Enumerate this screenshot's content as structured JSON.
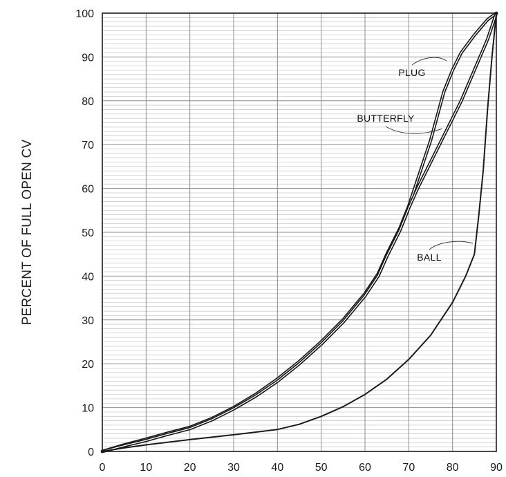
{
  "chart_data": {
    "type": "line",
    "ylabel": "PERCENT OF FULL OPEN CV",
    "xlabel": "",
    "xlim": [
      0,
      90
    ],
    "ylim": [
      0,
      100
    ],
    "xticks": [
      0,
      10,
      20,
      30,
      40,
      50,
      60,
      70,
      80,
      90
    ],
    "yticks": [
      0,
      10,
      20,
      30,
      40,
      50,
      60,
      70,
      80,
      90,
      100
    ],
    "grid": true,
    "series": [
      {
        "name": "PLUG",
        "style": "double",
        "x": [
          0,
          5,
          10,
          15,
          20,
          25,
          30,
          35,
          40,
          45,
          50,
          55,
          60,
          63,
          65,
          68,
          70,
          72,
          75,
          78,
          80,
          82,
          85,
          88,
          90
        ],
        "y": [
          0,
          1.5,
          2.8,
          4.2,
          5.5,
          7.5,
          10,
          13,
          16.5,
          20.5,
          25,
          30,
          36,
          40.5,
          45,
          51,
          56,
          62,
          71,
          82,
          87,
          91,
          95,
          98.5,
          100
        ]
      },
      {
        "name": "BUTTERFLY",
        "style": "double",
        "x": [
          0,
          5,
          10,
          15,
          20,
          25,
          30,
          35,
          40,
          45,
          50,
          55,
          60,
          63,
          65,
          68,
          70,
          72,
          75,
          78,
          80,
          82,
          85,
          88,
          90
        ],
        "y": [
          0,
          1.3,
          2.5,
          3.9,
          5.2,
          7.2,
          9.7,
          12.6,
          16,
          20,
          24.5,
          29.5,
          35.5,
          40,
          44.5,
          50.5,
          55.5,
          60,
          66,
          72,
          76,
          80,
          87,
          94,
          100
        ]
      },
      {
        "name": "BALL",
        "style": "single",
        "x": [
          0,
          5,
          10,
          20,
          30,
          40,
          45,
          50,
          55,
          60,
          65,
          70,
          75,
          80,
          83,
          85,
          86,
          87,
          88,
          89,
          90
        ],
        "y": [
          0,
          0.8,
          1.5,
          2.7,
          3.8,
          5,
          6.2,
          8,
          10.2,
          13,
          16.5,
          21,
          26.5,
          34,
          40,
          45,
          54,
          64,
          78,
          90,
          100
        ]
      }
    ]
  },
  "colors": {
    "background": "#ffffff",
    "axis": "#1a1a1a",
    "grid_major": "#8c8c8c",
    "grid_minor": "#c4c4c4",
    "curve": "#1a1a1a"
  }
}
